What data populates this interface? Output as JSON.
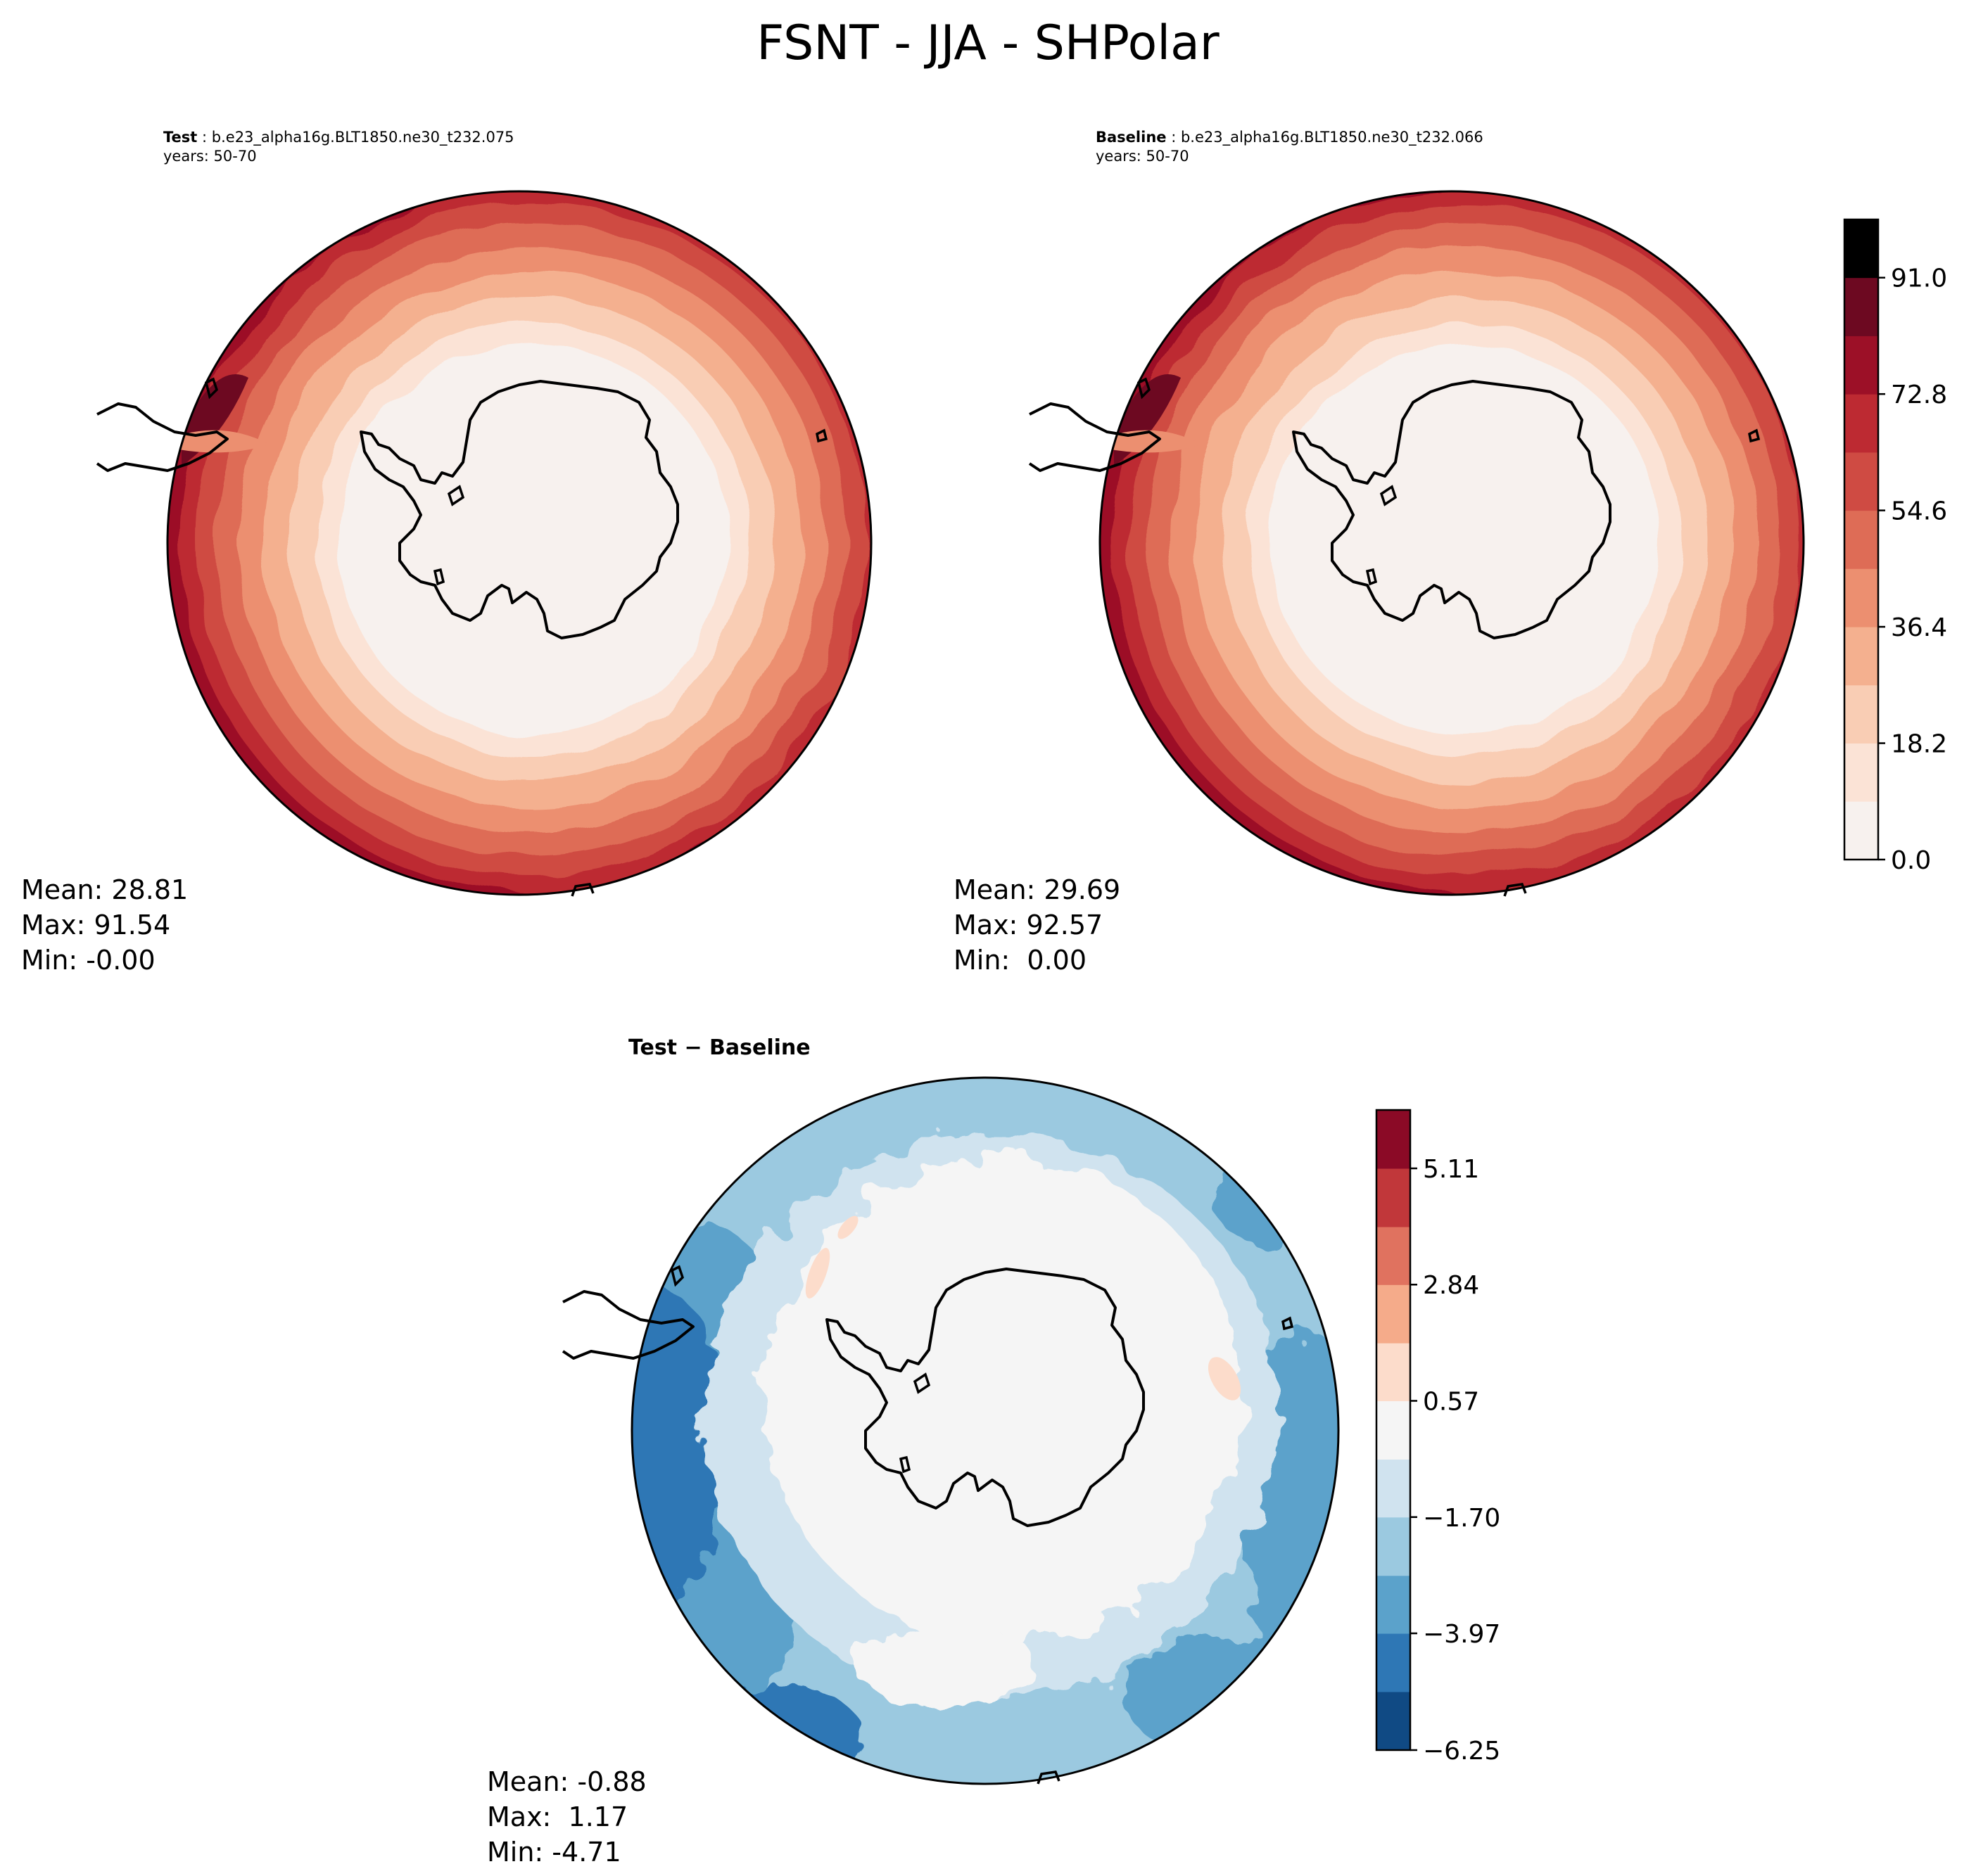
{
  "figure": {
    "title": "FSNT - JJA - SHPolar"
  },
  "colors": {
    "reds": [
      "#f7f1ee",
      "#fbe3d6",
      "#f9cdb4",
      "#f4b08f",
      "#ec8f70",
      "#de6c56",
      "#cf4b43",
      "#bd2a32",
      "#9c1027",
      "#6d0921"
    ],
    "diverging": [
      "#104a84",
      "#2e77b5",
      "#5ba2cb",
      "#9bc9e0",
      "#d0e3ef",
      "#f5f5f5",
      "#fcdccb",
      "#f5ab8a",
      "#e0725f",
      "#c1373a",
      "#8b0a26"
    ],
    "coastline": "#000000"
  },
  "panels": {
    "test": {
      "label": "Test",
      "case": "b.e23_alpha16g.BLT1850.ne30_t232.075",
      "years": "years: 50-70",
      "mean": "Mean: 28.81",
      "max": "Max: 91.54",
      "min": "Min: -0.00"
    },
    "baseline": {
      "label": "Baseline",
      "case": "b.e23_alpha16g.BLT1850.ne30_t232.066",
      "years": "years: 50-70",
      "mean": "Mean: 29.69",
      "max": "Max: 92.57",
      "min": "Min:  0.00"
    },
    "diff": {
      "title": "Test − Baseline",
      "mean": "Mean: -0.88",
      "max": "Max:  1.17",
      "min": "Min: -4.71"
    }
  },
  "colorbars": {
    "main": {
      "levels": [
        0.0,
        9.1,
        18.2,
        27.3,
        36.4,
        45.5,
        54.6,
        63.7,
        72.8,
        81.9,
        91.0,
        100.1
      ],
      "ticks": [
        "0.0",
        "18.2",
        "36.4",
        "54.6",
        "72.8",
        "91.0"
      ],
      "tick_values": [
        0.0,
        18.2,
        36.4,
        54.6,
        72.8,
        91.0
      ]
    },
    "diff": {
      "levels": [
        -6.25,
        -5.11,
        -3.97,
        -2.84,
        -1.7,
        -0.57,
        0.57,
        1.7,
        2.84,
        3.97,
        5.11,
        6.25
      ],
      "ticks": [
        "−6.25",
        "−3.97",
        "−1.70",
        "0.57",
        "2.84",
        "5.11"
      ],
      "tick_values": [
        -6.25,
        -3.97,
        -1.7,
        0.57,
        2.84,
        5.11
      ]
    }
  }
}
